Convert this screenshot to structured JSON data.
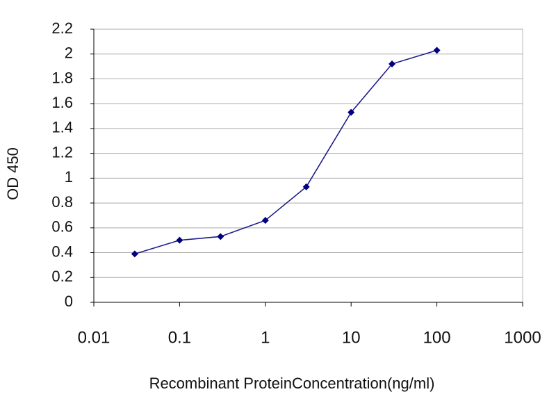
{
  "chart_data": {
    "type": "line",
    "xlabel": "Recombinant ProteinConcentration(ng/ml)",
    "ylabel": "OD 450",
    "x": [
      0.03,
      0.1,
      0.3,
      1,
      3,
      10,
      30,
      100
    ],
    "series": [
      {
        "color": "#1c1c8c",
        "values": [
          0.39,
          0.5,
          0.53,
          0.66,
          0.93,
          1.53,
          1.92,
          2.03
        ]
      }
    ],
    "xscale": "log",
    "xlim": [
      0.01,
      1000
    ],
    "xticks": [
      0.01,
      0.1,
      1,
      10,
      100,
      1000
    ],
    "ylim": [
      0,
      2.2
    ],
    "yticks": [
      0,
      0.2,
      0.4,
      0.6,
      0.8,
      1,
      1.2,
      1.4,
      1.6,
      1.8,
      2,
      2.2
    ],
    "grid": true
  }
}
